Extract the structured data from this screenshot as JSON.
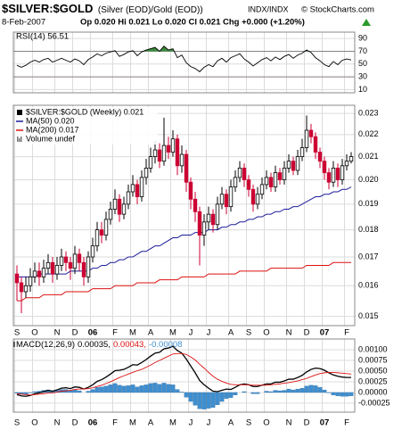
{
  "header": {
    "title": "$SILVER:$GOLD",
    "subtitle": "(Silver (EOD)/Gold (EOD))",
    "exchange": "INDX/INDX",
    "credit": "© StockCharts.com",
    "date": "8-Feb-2007",
    "quote": "Op 0.020 Hi 0.021 Lo 0.020 Cl 0.021 Chg +0.000 (+1.20%)"
  },
  "chart_data": [
    {
      "type": "line",
      "title": "RSI(14) 56.51",
      "color": "#000000",
      "overbought": 70,
      "oversold": 30,
      "overbought_color": "#3c8c3c",
      "oversold_color": "#cc3333",
      "values": [
        48,
        45,
        48,
        53,
        56,
        53,
        57,
        59,
        53,
        56,
        59,
        56,
        53,
        58,
        55,
        49,
        57,
        61,
        66,
        63,
        67,
        69,
        71,
        62,
        65,
        69,
        71,
        63,
        69,
        72,
        74,
        76,
        70,
        78,
        72,
        74,
        60,
        64,
        52,
        46,
        43,
        38,
        45,
        49,
        46,
        55,
        59,
        53,
        60,
        63,
        66,
        58,
        53,
        47,
        52,
        57,
        60,
        55,
        61,
        57,
        62,
        65,
        59,
        64,
        67,
        72,
        68,
        60,
        55,
        49,
        46,
        54,
        49,
        56,
        58,
        56.51
      ],
      "ylim": [
        5,
        100
      ],
      "yticks": [
        10,
        30,
        50,
        70,
        90
      ],
      "grid": true
    },
    {
      "type": "candlestick",
      "name": "$SILVER:$GOLD (Weekly) 0.021",
      "up_color": "#000000",
      "down_color": "#cc0033",
      "volume_label": "Volume undef",
      "categories": [
        "S",
        null,
        null,
        null,
        "O",
        null,
        null,
        null,
        null,
        "N",
        null,
        null,
        null,
        "D",
        null,
        null,
        null,
        "06",
        null,
        null,
        null,
        null,
        "F",
        null,
        null,
        null,
        "M",
        null,
        null,
        null,
        "A",
        null,
        null,
        null,
        null,
        "M",
        null,
        null,
        null,
        "J",
        null,
        null,
        null,
        "J",
        null,
        null,
        null,
        null,
        "A",
        null,
        null,
        null,
        "S",
        null,
        null,
        null,
        "O",
        null,
        null,
        null,
        null,
        "N",
        null,
        null,
        null,
        "D",
        null,
        null,
        null,
        "07",
        null,
        null,
        null,
        null,
        "F",
        null
      ],
      "open": [
        0.0164,
        0.0161,
        0.0158,
        0.016,
        0.0163,
        0.0165,
        0.0163,
        0.0166,
        0.0168,
        0.0164,
        0.0167,
        0.017,
        0.0168,
        0.0166,
        0.0171,
        0.0168,
        0.0163,
        0.017,
        0.0174,
        0.018,
        0.0178,
        0.0184,
        0.0188,
        0.0192,
        0.0186,
        0.019,
        0.0195,
        0.0198,
        0.0193,
        0.0201,
        0.0205,
        0.021,
        0.0213,
        0.0208,
        0.0215,
        0.0212,
        0.0218,
        0.0206,
        0.0211,
        0.0199,
        0.0192,
        0.0187,
        0.0178,
        0.0183,
        0.0186,
        0.0182,
        0.019,
        0.0194,
        0.0189,
        0.0197,
        0.0201,
        0.0205,
        0.02,
        0.0196,
        0.019,
        0.0194,
        0.0198,
        0.0201,
        0.0197,
        0.0203,
        0.02,
        0.0205,
        0.0208,
        0.0204,
        0.021,
        0.0214,
        0.0222,
        0.0219,
        0.0212,
        0.0208,
        0.0203,
        0.0199,
        0.0205,
        0.02,
        0.0206,
        0.0208
      ],
      "high": [
        0.0167,
        0.0163,
        0.0163,
        0.0166,
        0.0168,
        0.0168,
        0.0169,
        0.0171,
        0.017,
        0.017,
        0.0173,
        0.0172,
        0.017,
        0.0174,
        0.0173,
        0.017,
        0.0172,
        0.0177,
        0.0183,
        0.0183,
        0.0187,
        0.0191,
        0.0196,
        0.0194,
        0.0193,
        0.0198,
        0.0202,
        0.02,
        0.0204,
        0.0209,
        0.0214,
        0.0217,
        0.0216,
        0.0228,
        0.0219,
        0.0222,
        0.022,
        0.0215,
        0.0213,
        0.0201,
        0.0195,
        0.0189,
        0.0186,
        0.0189,
        0.0188,
        0.0193,
        0.0197,
        0.0196,
        0.02,
        0.0204,
        0.0208,
        0.0207,
        0.0202,
        0.0198,
        0.0197,
        0.0201,
        0.0204,
        0.0203,
        0.0206,
        0.0205,
        0.0208,
        0.0211,
        0.021,
        0.0213,
        0.0218,
        0.0229,
        0.0225,
        0.0221,
        0.0214,
        0.021,
        0.0205,
        0.0208,
        0.0207,
        0.0209,
        0.0211,
        0.0212
      ],
      "low": [
        0.0155,
        0.0151,
        0.0156,
        0.0158,
        0.0161,
        0.016,
        0.0161,
        0.0164,
        0.0161,
        0.0162,
        0.0165,
        0.0165,
        0.0162,
        0.0164,
        0.0165,
        0.016,
        0.0161,
        0.0168,
        0.0172,
        0.0175,
        0.0176,
        0.0182,
        0.0186,
        0.0183,
        0.0184,
        0.0188,
        0.0193,
        0.019,
        0.0191,
        0.0198,
        0.0203,
        0.0207,
        0.0205,
        0.0206,
        0.0209,
        0.021,
        0.0202,
        0.0203,
        0.0195,
        0.0188,
        0.0183,
        0.0167,
        0.0174,
        0.018,
        0.0179,
        0.018,
        0.0188,
        0.0186,
        0.0187,
        0.0195,
        0.0199,
        0.0197,
        0.0193,
        0.0187,
        0.0188,
        0.0192,
        0.0196,
        0.0195,
        0.0195,
        0.0198,
        0.0198,
        0.0203,
        0.0202,
        0.0202,
        0.0208,
        0.0212,
        0.0216,
        0.0209,
        0.0205,
        0.02,
        0.0196,
        0.0197,
        0.0197,
        0.0198,
        0.0204,
        0.0207
      ],
      "close": [
        0.0161,
        0.0158,
        0.016,
        0.0163,
        0.0165,
        0.0163,
        0.0166,
        0.0168,
        0.0164,
        0.0167,
        0.017,
        0.0168,
        0.0166,
        0.0171,
        0.0168,
        0.0163,
        0.017,
        0.0174,
        0.018,
        0.0178,
        0.0184,
        0.0188,
        0.0192,
        0.0186,
        0.019,
        0.0195,
        0.0198,
        0.0193,
        0.0201,
        0.0205,
        0.021,
        0.0213,
        0.0208,
        0.0215,
        0.0212,
        0.0218,
        0.0206,
        0.0211,
        0.0199,
        0.0192,
        0.0187,
        0.0178,
        0.0183,
        0.0186,
        0.0182,
        0.019,
        0.0194,
        0.0189,
        0.0197,
        0.0201,
        0.0205,
        0.02,
        0.0196,
        0.019,
        0.0194,
        0.0198,
        0.0201,
        0.0197,
        0.0203,
        0.02,
        0.0205,
        0.0208,
        0.0204,
        0.021,
        0.0214,
        0.0222,
        0.0219,
        0.0212,
        0.0208,
        0.0203,
        0.0199,
        0.0205,
        0.02,
        0.0206,
        0.0208,
        0.021
      ],
      "series": [
        {
          "name": "MA(50) 0.020",
          "color": "#1c1c9a",
          "values": [
            0.0163,
            0.0163,
            0.0163,
            0.0163,
            0.0163,
            0.0164,
            0.0164,
            0.0164,
            0.0164,
            0.0164,
            0.0164,
            0.0164,
            0.0165,
            0.0165,
            0.0165,
            0.0165,
            0.0165,
            0.0166,
            0.0166,
            0.0167,
            0.0167,
            0.0168,
            0.0168,
            0.0169,
            0.0169,
            0.017,
            0.017,
            0.0171,
            0.0172,
            0.0172,
            0.0173,
            0.0174,
            0.0174,
            0.0175,
            0.0176,
            0.0177,
            0.0177,
            0.0178,
            0.0178,
            0.0178,
            0.0179,
            0.0179,
            0.0179,
            0.018,
            0.018,
            0.018,
            0.0181,
            0.0181,
            0.0182,
            0.0182,
            0.0183,
            0.0183,
            0.0184,
            0.0184,
            0.0185,
            0.0185,
            0.0186,
            0.0186,
            0.0187,
            0.0187,
            0.0188,
            0.0188,
            0.0189,
            0.0189,
            0.019,
            0.0191,
            0.0192,
            0.0193,
            0.0193,
            0.0194,
            0.0194,
            0.0195,
            0.0195,
            0.0196,
            0.0196,
            0.0197
          ]
        },
        {
          "name": "MA(200) 0.017",
          "color": "#dd1111",
          "values": [
            0.0155,
            0.0155,
            0.0156,
            0.0156,
            0.0156,
            0.0156,
            0.0157,
            0.0157,
            0.0157,
            0.0157,
            0.0157,
            0.0158,
            0.0158,
            0.0158,
            0.0158,
            0.0158,
            0.0158,
            0.0159,
            0.0159,
            0.0159,
            0.0159,
            0.0159,
            0.016,
            0.016,
            0.016,
            0.016,
            0.016,
            0.0161,
            0.0161,
            0.0161,
            0.0161,
            0.0161,
            0.0162,
            0.0162,
            0.0162,
            0.0162,
            0.0162,
            0.0163,
            0.0163,
            0.0163,
            0.0163,
            0.0163,
            0.0163,
            0.0164,
            0.0164,
            0.0164,
            0.0164,
            0.0164,
            0.0164,
            0.0164,
            0.0165,
            0.0165,
            0.0165,
            0.0165,
            0.0165,
            0.0165,
            0.0165,
            0.0166,
            0.0166,
            0.0166,
            0.0166,
            0.0166,
            0.0166,
            0.0166,
            0.0166,
            0.0167,
            0.0167,
            0.0167,
            0.0167,
            0.0167,
            0.0167,
            0.0168,
            0.0168,
            0.0168,
            0.0168,
            0.0168
          ]
        }
      ],
      "ylim": [
        0.01471,
        0.0234
      ],
      "log": true,
      "yticks": [
        0.015,
        0.016,
        0.017,
        0.018,
        0.019,
        {
          "value": 0.02,
          "label": "0.020"
        },
        0.021,
        0.022,
        0.023
      ],
      "grid": true
    },
    {
      "type": "macd",
      "title": "MACD(12,26,9)",
      "series": [
        {
          "name": "0.00035,",
          "color": "#000000",
          "kind": "line",
          "values": [
            -5e-05,
            -8e-05,
            -9e-05,
            -7e-05,
            -3e-05,
            -1e-05,
            2e-05,
            5e-05,
            3e-05,
            6e-05,
            0.0001,
            0.00011,
            9e-05,
            0.00013,
            0.00012,
            8e-05,
            0.00012,
            0.00018,
            0.00026,
            0.0003,
            0.00036,
            0.00043,
            0.00051,
            0.00052,
            0.00054,
            0.00059,
            0.00065,
            0.00064,
            0.0007,
            0.00077,
            0.00085,
            0.00092,
            0.00094,
            0.00102,
            0.00104,
            0.00108,
            0.00098,
            0.00092,
            0.00078,
            0.00062,
            0.00046,
            0.00028,
            0.00018,
            0.0001,
            3e-05,
            2e-05,
            5e-05,
            8e-05,
            7e-05,
            0.00012,
            0.00018,
            0.0002,
            0.00018,
            0.00014,
            0.00014,
            0.00017,
            0.0002,
            0.0002,
            0.00024,
            0.00024,
            0.00027,
            0.00031,
            0.00031,
            0.00035,
            0.0004,
            0.00048,
            0.00054,
            0.00057,
            0.00056,
            0.00052,
            0.00046,
            0.00041,
            0.00038,
            0.00036,
            0.00035,
            0.00035
          ]
        },
        {
          "name": "0.00043,",
          "color": "#dd1111",
          "kind": "line",
          "values": [
            -3e-05,
            -4e-05,
            -5e-05,
            -6e-05,
            -5e-05,
            -4e-05,
            -3e-05,
            -1e-05,
            -1e-05,
            1e-05,
            3e-05,
            4e-05,
            5e-05,
            7e-05,
            8e-05,
            8e-05,
            9e-05,
            0.00011,
            0.00014,
            0.00017,
            0.00021,
            0.00025,
            0.0003,
            0.00035,
            0.00039,
            0.00043,
            0.00047,
            0.00051,
            0.00054,
            0.00059,
            0.00064,
            0.0007,
            0.00075,
            0.0008,
            0.00085,
            0.0009,
            0.00091,
            0.00091,
            0.00089,
            0.00083,
            0.00076,
            0.00066,
            0.00057,
            0.00047,
            0.00038,
            0.00031,
            0.00026,
            0.00022,
            0.00019,
            0.00018,
            0.00018,
            0.00018,
            0.00018,
            0.00017,
            0.00017,
            0.00017,
            0.00017,
            0.00018,
            0.00019,
            0.0002,
            0.00022,
            0.00023,
            0.00025,
            0.00027,
            0.0003,
            0.00033,
            0.00037,
            0.00041,
            0.00044,
            0.00046,
            0.00047,
            0.00047,
            0.00046,
            0.00045,
            0.00044,
            0.00043
          ]
        },
        {
          "name": "-0.00008",
          "color": "#3f8fd0",
          "kind": "bar",
          "values": [
            -2e-05,
            -4e-05,
            -4e-05,
            -1e-05,
            2e-05,
            3e-05,
            5e-05,
            6e-05,
            4e-05,
            5e-05,
            7e-05,
            7e-05,
            4e-05,
            6e-05,
            4e-05,
            0,
            3e-05,
            7e-05,
            0.00012,
            0.00013,
            0.00015,
            0.00018,
            0.00021,
            0.00017,
            0.00015,
            0.00016,
            0.00018,
            0.00013,
            0.00016,
            0.00018,
            0.00021,
            0.00022,
            0.00019,
            0.00022,
            0.00019,
            0.00018,
            7e-05,
            1e-05,
            -0.00011,
            -0.00021,
            -0.0003,
            -0.00038,
            -0.00039,
            -0.00037,
            -0.00035,
            -0.00029,
            -0.00021,
            -0.00014,
            -0.00012,
            -6e-05,
            0,
            2e-05,
            0,
            -3e-05,
            -3e-05,
            0,
            3e-05,
            2e-05,
            5e-05,
            4e-05,
            5e-05,
            8e-05,
            6e-05,
            8e-05,
            0.0001,
            0.00015,
            0.00017,
            0.00016,
            0.00012,
            6e-05,
            -1e-05,
            -6e-05,
            -8e-05,
            -9e-05,
            -9e-05,
            -8e-05
          ]
        }
      ],
      "ylim": [
        -0.00046,
        0.00125
      ],
      "yticks": [
        {
          "value": -0.00025,
          "label": "-0.00025"
        },
        {
          "value": 0,
          "label": "0.00000"
        },
        {
          "value": 0.00025,
          "label": "0.00025"
        },
        {
          "value": 0.0005,
          "label": "0.00050"
        },
        {
          "value": 0.00075,
          "label": "0.00075"
        },
        {
          "value": 0.001,
          "label": "0.00100"
        }
      ],
      "grid": true
    }
  ]
}
